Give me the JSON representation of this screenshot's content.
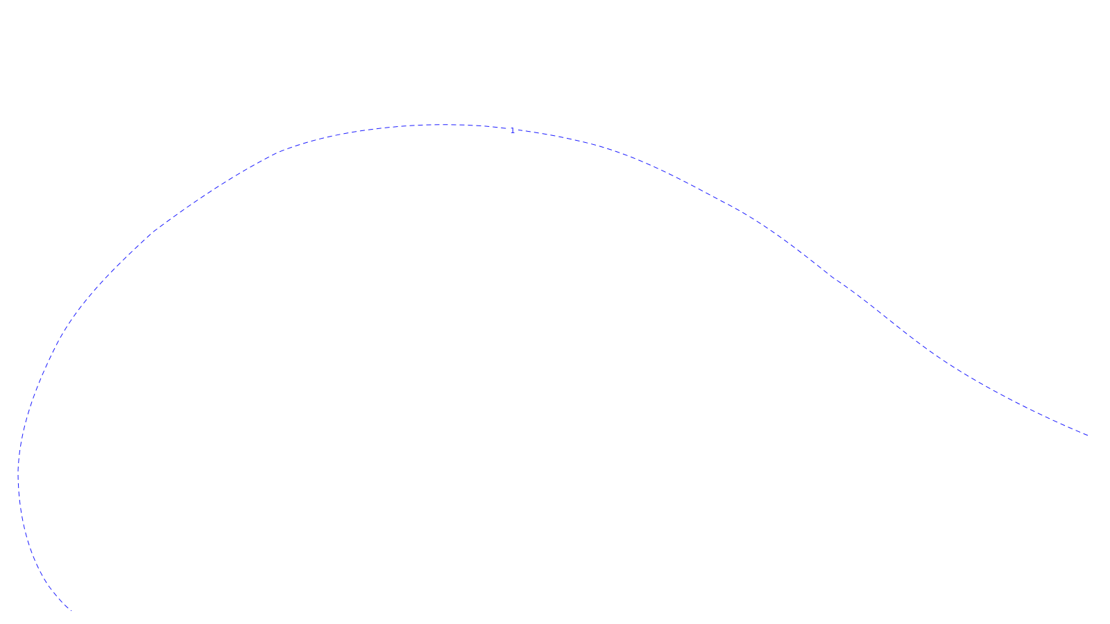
{
  "diagram": {
    "type": "dashed contour line",
    "line_style": "dashed",
    "line_color": "#1a1aff",
    "label_color": "#1a1aff",
    "background_color": "#ffffff",
    "contours": [
      {
        "label": "1"
      }
    ]
  }
}
